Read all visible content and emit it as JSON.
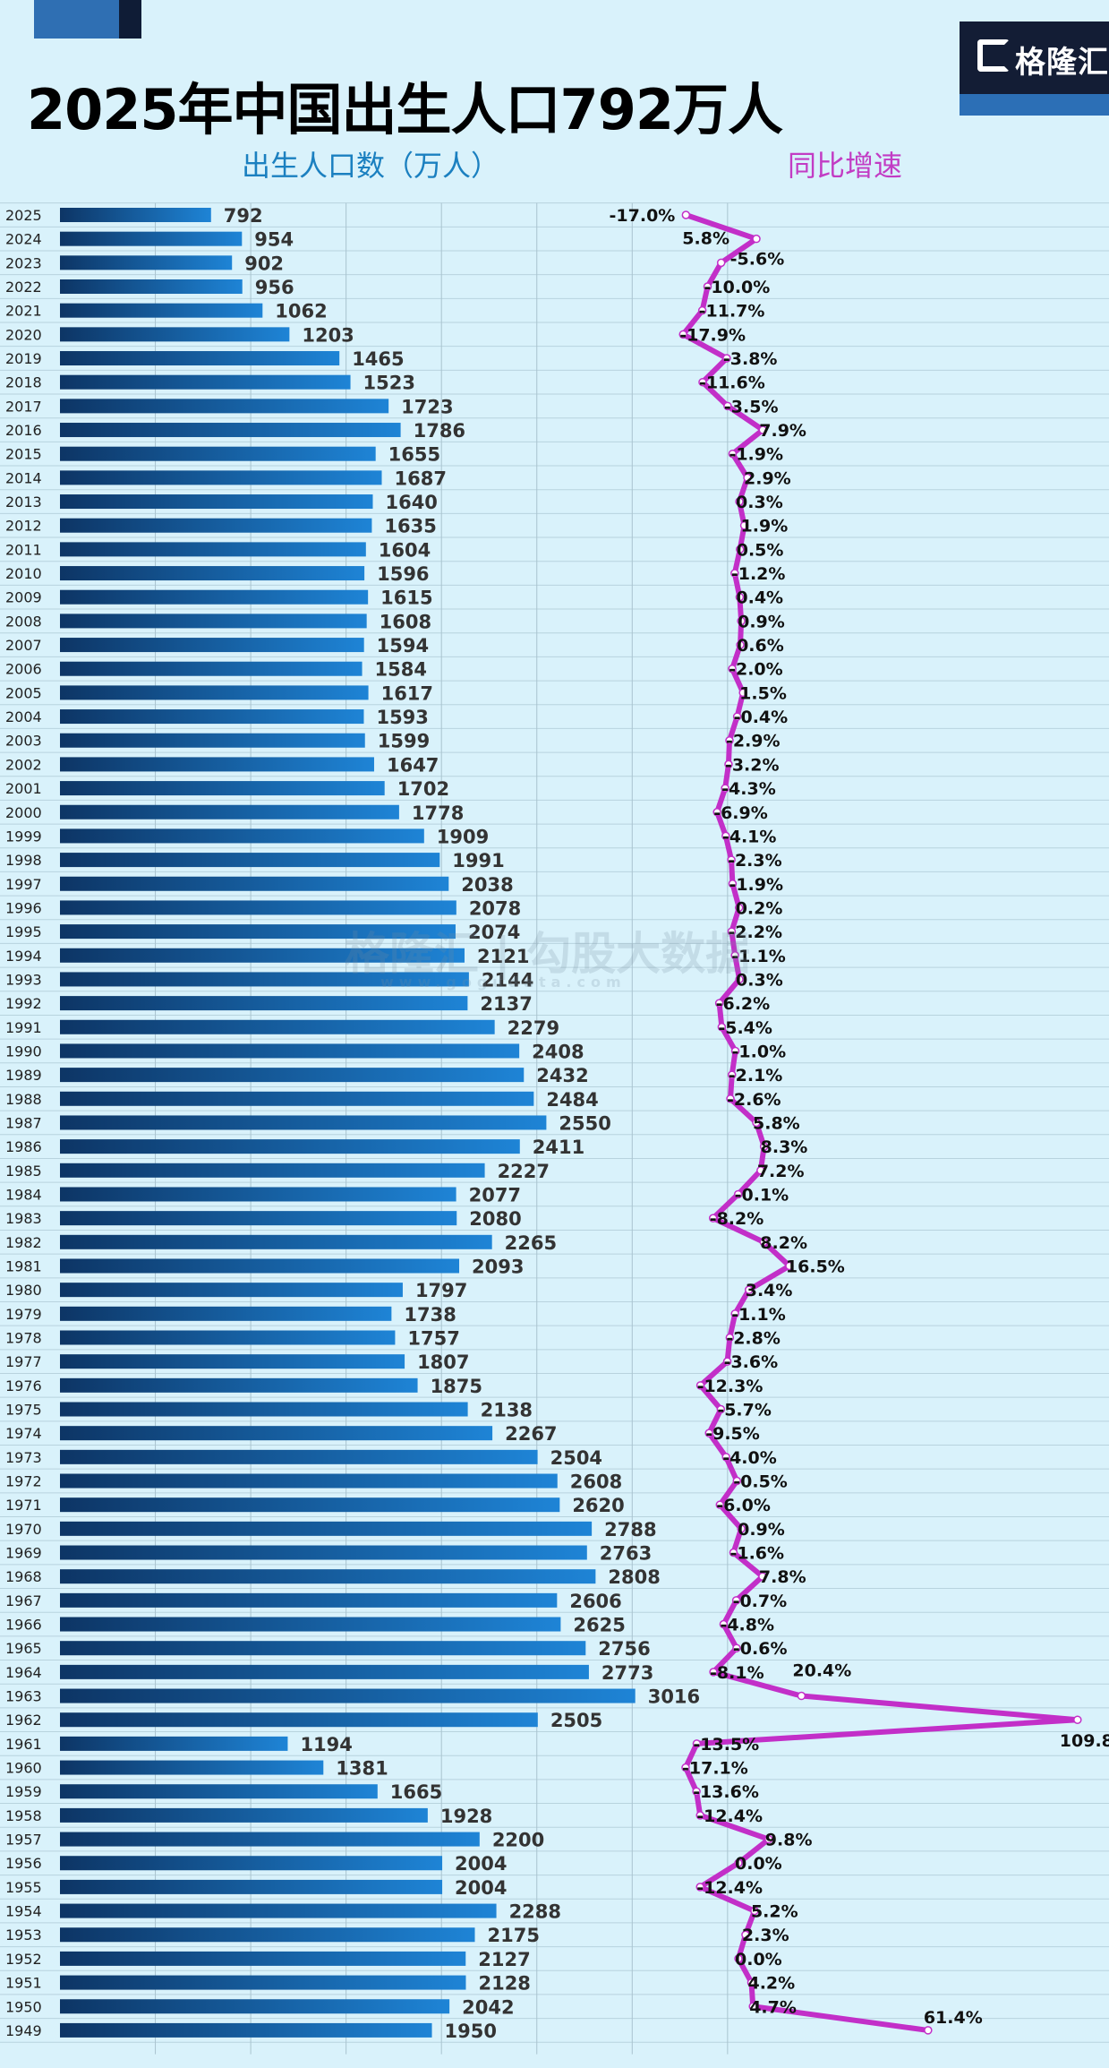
{
  "title": "2025年中国出生人口792万人",
  "logo": {
    "text": "格隆汇"
  },
  "watermark": {
    "text": "格隆汇 | 勾股大数据",
    "url": "www.gogudata.com"
  },
  "colors": {
    "background": "#d9f2fb",
    "bar_dark": "#0d3565",
    "bar_light": "#1e84d6",
    "line": "#c22fc8",
    "births_label": "#1b80c0",
    "growth_label": "#c23cc4"
  },
  "chart_data": {
    "type": "bar+line",
    "title": "2025年中国出生人口792万人",
    "orientation": "horizontal",
    "grid": true,
    "categories": [
      "2025",
      "2024",
      "2023",
      "2022",
      "2021",
      "2020",
      "2019",
      "2018",
      "2017",
      "2016",
      "2015",
      "2014",
      "2013",
      "2012",
      "2011",
      "2010",
      "2009",
      "2008",
      "2007",
      "2006",
      "2005",
      "2004",
      "2003",
      "2002",
      "2001",
      "2000",
      "1999",
      "1998",
      "1997",
      "1996",
      "1995",
      "1994",
      "1993",
      "1992",
      "1991",
      "1990",
      "1989",
      "1988",
      "1987",
      "1986",
      "1985",
      "1984",
      "1983",
      "1982",
      "1981",
      "1980",
      "1979",
      "1978",
      "1977",
      "1976",
      "1975",
      "1974",
      "1973",
      "1972",
      "1971",
      "1970",
      "1969",
      "1968",
      "1967",
      "1966",
      "1965",
      "1964",
      "1963",
      "1962",
      "1961",
      "1960",
      "1959",
      "1958",
      "1957",
      "1956",
      "1955",
      "1954",
      "1953",
      "1952",
      "1951",
      "1950",
      "1949"
    ],
    "series": [
      {
        "name": "出生人口数（万人）",
        "type": "bar",
        "values": [
          792,
          954,
          902,
          956,
          1062,
          1203,
          1465,
          1523,
          1723,
          1786,
          1655,
          1687,
          1640,
          1635,
          1604,
          1596,
          1615,
          1608,
          1594,
          1584,
          1617,
          1593,
          1599,
          1647,
          1702,
          1778,
          1909,
          1991,
          2038,
          2078,
          2074,
          2121,
          2144,
          2137,
          2279,
          2408,
          2432,
          2484,
          2550,
          2411,
          2227,
          2077,
          2080,
          2265,
          2093,
          1797,
          1738,
          1757,
          1807,
          1875,
          2138,
          2267,
          2504,
          2608,
          2620,
          2788,
          2763,
          2808,
          2606,
          2625,
          2756,
          2773,
          3016,
          2505,
          1194,
          1381,
          1665,
          1928,
          2200,
          2004,
          2004,
          2288,
          2175,
          2127,
          2128,
          2042,
          1950
        ]
      },
      {
        "name": "同比增速",
        "type": "line",
        "unit": "%",
        "values": [
          -17.0,
          5.8,
          -5.6,
          -10.0,
          -11.7,
          -17.9,
          -3.8,
          -11.6,
          -3.5,
          7.9,
          -1.9,
          2.9,
          0.3,
          1.9,
          0.5,
          -1.2,
          0.4,
          0.9,
          0.6,
          -2.0,
          1.5,
          -0.4,
          -2.9,
          -3.2,
          -4.3,
          -6.9,
          -4.1,
          -2.3,
          -1.9,
          0.2,
          -2.2,
          -1.1,
          0.3,
          -6.2,
          -5.4,
          -1.0,
          -2.1,
          -2.6,
          5.8,
          8.3,
          7.2,
          -0.1,
          -8.2,
          8.2,
          16.5,
          3.4,
          -1.1,
          -2.8,
          -3.6,
          -12.3,
          -5.7,
          -9.5,
          -4.0,
          -0.5,
          -6.0,
          0.9,
          -1.6,
          7.8,
          -0.7,
          -4.8,
          -0.6,
          -8.1,
          20.4,
          109.8,
          -13.5,
          -17.1,
          -13.6,
          -12.4,
          9.8,
          0.0,
          -12.4,
          5.2,
          2.3,
          0.0,
          4.2,
          4.7,
          61.4
        ]
      }
    ]
  }
}
